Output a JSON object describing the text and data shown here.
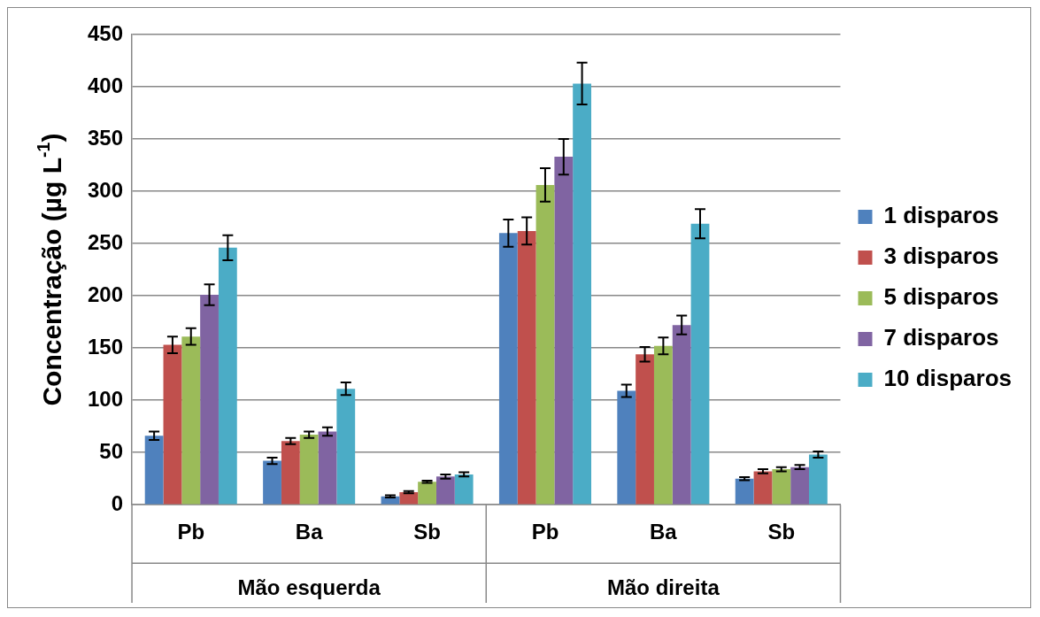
{
  "chart_data": {
    "type": "bar",
    "ylabel": "Concentração (µg L$^{-1}$)",
    "categories": [
      "Pb",
      "Ba",
      "Sb",
      "Pb",
      "Ba",
      "Sb"
    ],
    "annotations": [
      "Mão esquerda",
      "Mão direita"
    ],
    "series": [
      {
        "name": "1 disparos",
        "color": "#4f81bd",
        "values": [
          66,
          42,
          8,
          260,
          109,
          25
        ],
        "errors": [
          4,
          3,
          1,
          13,
          6,
          1.5
        ]
      },
      {
        "name": "3 disparos",
        "color": "#c0504d",
        "values": [
          153,
          61,
          12,
          262,
          144,
          32
        ],
        "errors": [
          8,
          3,
          1,
          13,
          7,
          2
        ]
      },
      {
        "name": "5 disparos",
        "color": "#9bbb59",
        "values": [
          161,
          67,
          22,
          306,
          152,
          34
        ],
        "errors": [
          8,
          3,
          1,
          16,
          8,
          2
        ]
      },
      {
        "name": "7 disparos",
        "color": "#8064a2",
        "values": [
          201,
          70,
          27,
          333,
          172,
          36
        ],
        "errors": [
          10,
          4,
          2,
          17,
          9,
          2
        ]
      },
      {
        "name": "10 disparos",
        "color": "#4bacc6",
        "values": [
          246,
          111,
          29,
          403,
          269,
          48
        ],
        "errors": [
          12,
          6,
          2,
          20,
          14,
          3
        ]
      }
    ],
    "ylim": [
      0,
      450
    ],
    "yticks": [
      0,
      50,
      100,
      150,
      200,
      250,
      300,
      350,
      400,
      450
    ],
    "grid": "y",
    "legend": "right"
  }
}
